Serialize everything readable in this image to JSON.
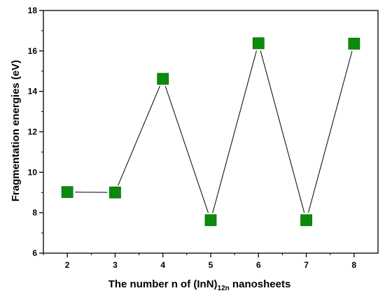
{
  "chart_data": {
    "type": "line",
    "title": "",
    "xlabel": {
      "main": "The number n of (InN)",
      "subscript": "12n",
      "suffix": " nanosheets"
    },
    "ylabel": "Fragmentation energies (eV)",
    "x": [
      2,
      3,
      4,
      5,
      6,
      7,
      8
    ],
    "xlim": [
      1.5,
      8.5
    ],
    "ylim": [
      6,
      18
    ],
    "xticks": [
      2,
      3,
      4,
      5,
      6,
      7,
      8
    ],
    "yticks": [
      6,
      8,
      10,
      12,
      14,
      16,
      18
    ],
    "grid": false,
    "legend": "none",
    "series": [
      {
        "values": [
          9.02,
          9.0,
          14.62,
          7.63,
          16.38,
          7.63,
          16.36
        ],
        "marker": "square",
        "marker_color": "#0c8a0c",
        "marker_edge": "#0a6e0a",
        "line_color": "#000000"
      }
    ]
  }
}
